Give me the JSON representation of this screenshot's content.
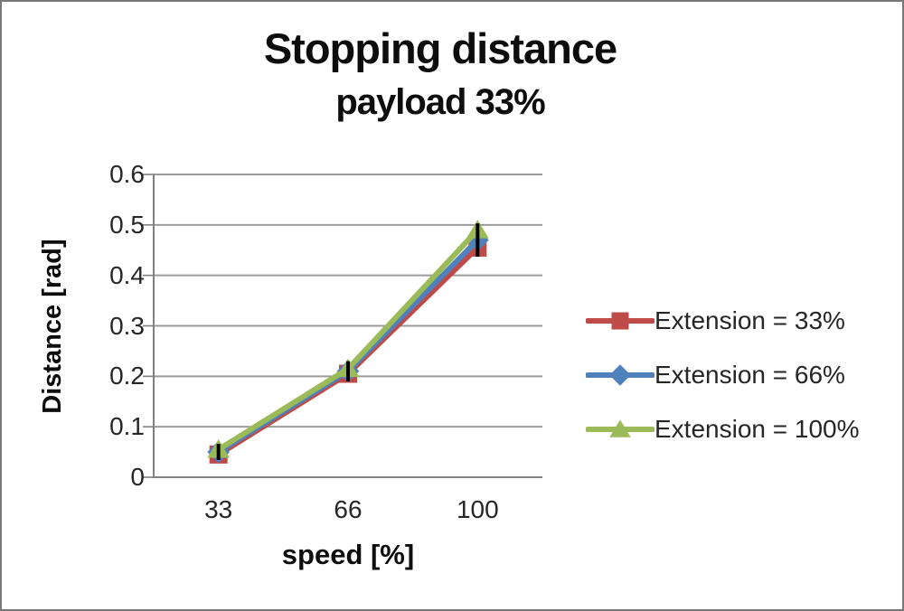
{
  "chart_data": {
    "type": "line",
    "title": "Stopping distance",
    "subtitle": "payload 33%",
    "xlabel": "speed [%]",
    "ylabel": "Distance [rad]",
    "categories": [
      "33",
      "66",
      "100"
    ],
    "x_values": [
      33,
      66,
      100
    ],
    "series": [
      {
        "name": "Extension = 33%",
        "color": "#be4b48",
        "marker": "square",
        "values": [
          0.045,
          0.205,
          0.455
        ]
      },
      {
        "name": "Extension = 66%",
        "color": "#4f81bd",
        "marker": "diamond",
        "values": [
          0.05,
          0.21,
          0.47
        ]
      },
      {
        "name": "Extension = 100%",
        "color": "#9bbb59",
        "marker": "triangle",
        "values": [
          0.055,
          0.215,
          0.49
        ]
      }
    ],
    "error_bars": {
      "color": "#000000",
      "points": [
        {
          "category": "33",
          "center": 0.05,
          "half_range": 0.016
        },
        {
          "category": "66",
          "center": 0.21,
          "half_range": 0.02
        },
        {
          "category": "100",
          "center": 0.47,
          "half_range": 0.033
        }
      ]
    },
    "y_ticks": [
      "0",
      "0.1",
      "0.2",
      "0.3",
      "0.4",
      "0.5",
      "0.6"
    ],
    "ylim": [
      0,
      0.6
    ],
    "grid": "horizontal-gridlines",
    "legend_position": "right",
    "styles": {
      "gridline_color": "#9b9b9b",
      "axis_color": "#808080",
      "tick_text_color": "#262626",
      "title_color": "#0d0d0d",
      "error_bar_color": "#000000",
      "background": "#ffffff",
      "border_color": "#787878"
    }
  }
}
